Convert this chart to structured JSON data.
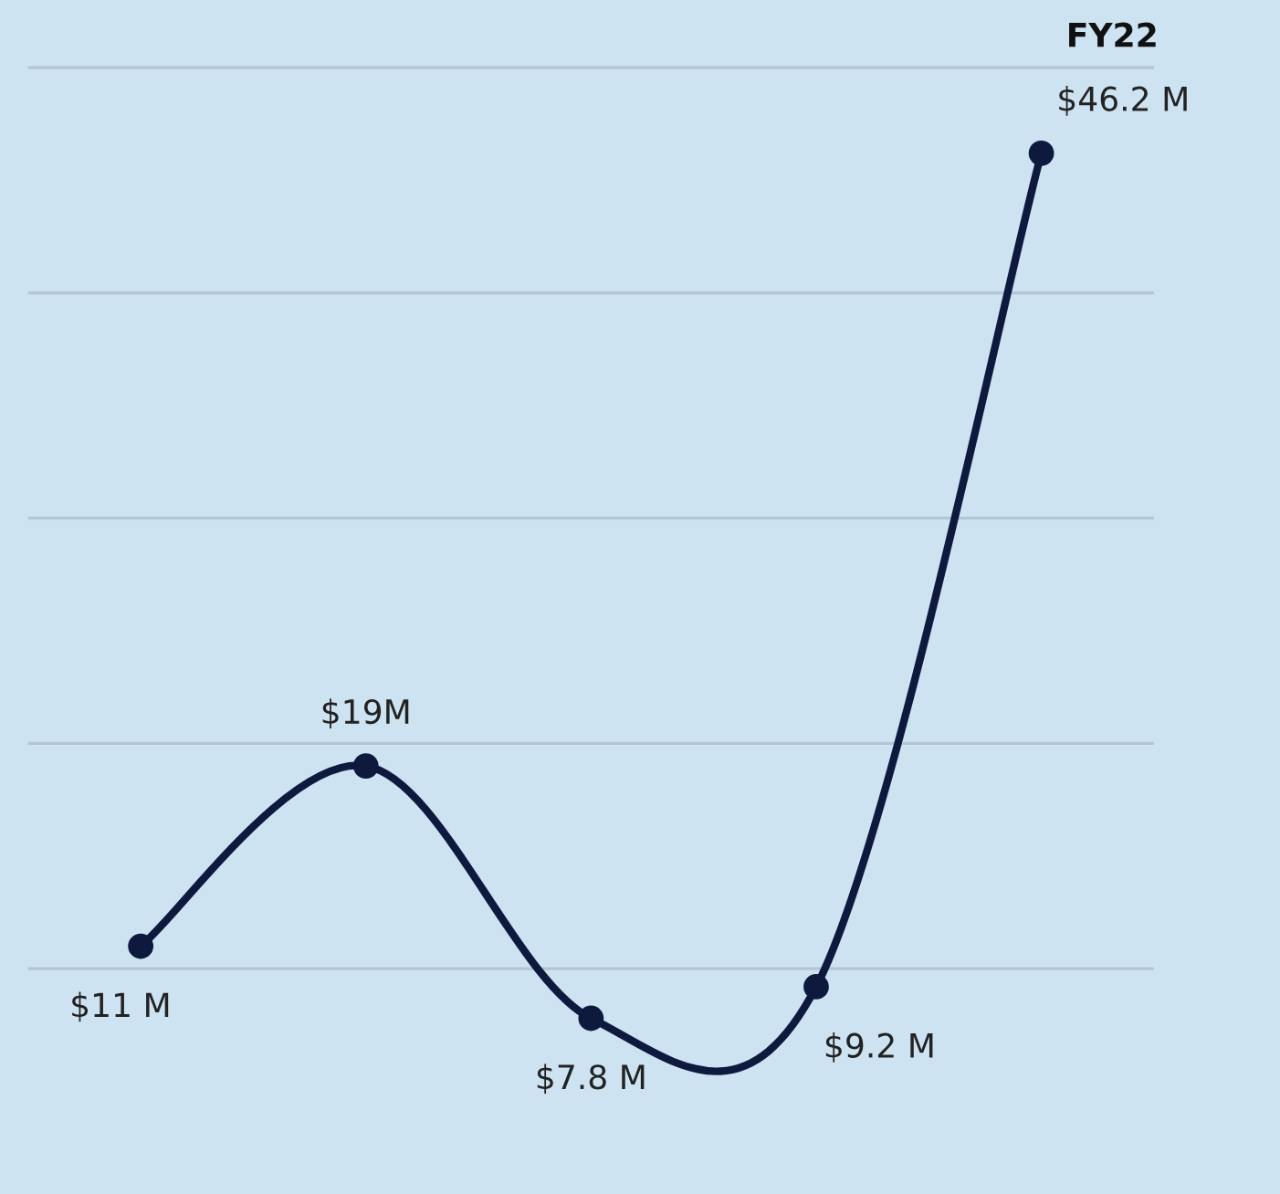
{
  "chart_data": {
    "type": "line",
    "title": "FY22",
    "categories": [
      null,
      null,
      null,
      null,
      null
    ],
    "series": [
      {
        "color": "#0d1a3d",
        "values": [
          11,
          19,
          7.8,
          9.2,
          46.2
        ],
        "value_labels": [
          "$11 M",
          "$19M",
          "$7.8 M",
          "$9.2 M",
          "$46.2 M"
        ]
      }
    ],
    "ylim": [
      0,
      53
    ],
    "yticks": [
      {
        "value": 10,
        "label": null
      },
      {
        "value": 20,
        "label": null
      },
      {
        "value": 30,
        "label": null
      },
      {
        "value": 40,
        "label": null
      },
      {
        "value": 50,
        "label": null
      }
    ],
    "grid": "y",
    "marker": "circle",
    "line_style": "solid"
  }
}
